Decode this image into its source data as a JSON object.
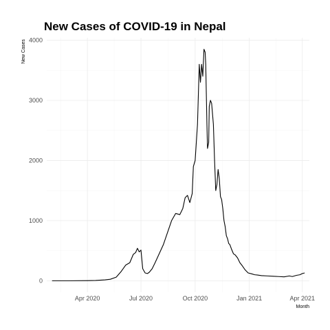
{
  "chart_data": {
    "type": "line",
    "title": "New Cases of COVID-19 in Nepal",
    "xlabel": "Month",
    "ylabel": "New Cases",
    "x_tick_labels": [
      "Apr 2020",
      "Jul 2020",
      "Oct 2020",
      "Jan 2021",
      "Apr 2021"
    ],
    "x_tick_dates": [
      "2020-04-01",
      "2020-07-01",
      "2020-10-01",
      "2021-01-01",
      "2021-04-01"
    ],
    "y_tick_labels": [
      "0",
      "1000",
      "2000",
      "3000",
      "4000"
    ],
    "y_ticks": [
      0,
      1000,
      2000,
      3000,
      4000
    ],
    "xlim": [
      "2020-01-23",
      "2021-04-13"
    ],
    "ylim": [
      -190,
      4040
    ],
    "grid": true,
    "series_color": "#000000",
    "x": [
      "2020-02-01",
      "2020-03-01",
      "2020-04-01",
      "2020-04-15",
      "2020-05-01",
      "2020-05-10",
      "2020-05-20",
      "2020-05-28",
      "2020-06-05",
      "2020-06-12",
      "2020-06-18",
      "2020-06-22",
      "2020-06-25",
      "2020-06-28",
      "2020-07-01",
      "2020-07-04",
      "2020-07-08",
      "2020-07-12",
      "2020-07-15",
      "2020-07-20",
      "2020-07-25",
      "2020-08-01",
      "2020-08-08",
      "2020-08-15",
      "2020-08-22",
      "2020-08-29",
      "2020-09-05",
      "2020-09-10",
      "2020-09-14",
      "2020-09-18",
      "2020-09-22",
      "2020-09-26",
      "2020-09-28",
      "2020-10-01",
      "2020-10-05",
      "2020-10-08",
      "2020-10-10",
      "2020-10-12",
      "2020-10-14",
      "2020-10-16",
      "2020-10-18",
      "2020-10-19",
      "2020-10-20",
      "2020-10-21",
      "2020-10-22",
      "2020-10-24",
      "2020-10-25",
      "2020-10-27",
      "2020-10-29",
      "2020-11-01",
      "2020-11-03",
      "2020-11-05",
      "2020-11-07",
      "2020-11-09",
      "2020-11-11",
      "2020-11-13",
      "2020-11-15",
      "2020-11-17",
      "2020-11-19",
      "2020-11-21",
      "2020-11-23",
      "2020-11-25",
      "2020-11-27",
      "2020-11-29",
      "2020-12-02",
      "2020-12-05",
      "2020-12-08",
      "2020-12-12",
      "2020-12-16",
      "2020-12-20",
      "2020-12-25",
      "2020-12-30",
      "2021-01-05",
      "2021-01-10",
      "2021-01-15",
      "2021-01-22",
      "2021-02-01",
      "2021-02-10",
      "2021-02-20",
      "2021-03-01",
      "2021-03-10",
      "2021-03-15",
      "2021-03-22",
      "2021-03-28",
      "2021-04-01",
      "2021-04-05"
    ],
    "y": [
      0,
      0,
      2,
      5,
      15,
      25,
      60,
      150,
      260,
      300,
      440,
      470,
      540,
      480,
      510,
      200,
      130,
      120,
      140,
      200,
      300,
      450,
      600,
      800,
      1000,
      1120,
      1100,
      1200,
      1380,
      1420,
      1300,
      1450,
      1900,
      2000,
      2600,
      3600,
      3300,
      3600,
      3400,
      3850,
      3800,
      3600,
      3100,
      2600,
      2200,
      2300,
      2900,
      3000,
      2950,
      2600,
      2000,
      1500,
      1600,
      1850,
      1700,
      1400,
      1350,
      1200,
      1000,
      900,
      750,
      700,
      620,
      600,
      520,
      450,
      430,
      380,
      300,
      250,
      180,
      130,
      115,
      100,
      95,
      85,
      80,
      75,
      70,
      65,
      80,
      70,
      90,
      100,
      120,
      130
    ]
  }
}
